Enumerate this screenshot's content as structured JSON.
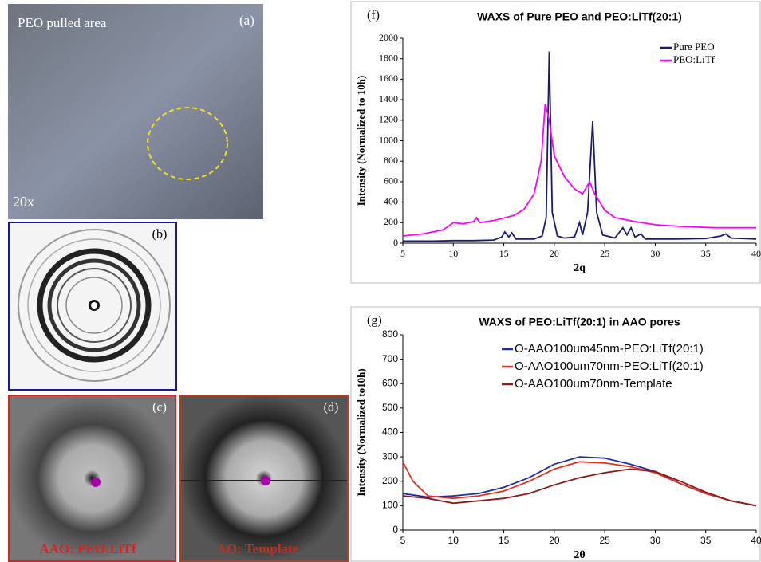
{
  "panels": {
    "a": {
      "tag": "(a)",
      "caption": "PEO pulled area",
      "magnification": "20x"
    },
    "b": {
      "tag": "(b)"
    },
    "c": {
      "tag": "(c)",
      "caption": "AAO: PEO:LiTf"
    },
    "d": {
      "tag": "(d)",
      "caption": "AO: Template"
    }
  },
  "chart_data": [
    {
      "type": "line",
      "tag": "(f)",
      "title": "WAXS of Pure PEO and PEO:LiTf(20:1)",
      "x_label": "2q",
      "y_label": "Intensity (Normalized to 10h)",
      "xlim": [
        5,
        40
      ],
      "xticks": [
        5,
        10,
        15,
        20,
        25,
        30,
        35,
        40
      ],
      "ylim": [
        0,
        2000
      ],
      "yticks": [
        0,
        200,
        400,
        600,
        800,
        1000,
        1200,
        1400,
        1600,
        1800,
        2000
      ],
      "legend": "top-right",
      "series": [
        {
          "name": "Pure PEO",
          "color": "#1a1a6e",
          "x": [
            5,
            8,
            10,
            12,
            14,
            14.8,
            15.1,
            15.5,
            15.8,
            16.2,
            18,
            18.8,
            19.2,
            19.5,
            19.8,
            20.3,
            21,
            22,
            22.5,
            22.8,
            23.3,
            23.8,
            24.2,
            24.8,
            26,
            26.8,
            27.2,
            27.6,
            28,
            28.6,
            29,
            32,
            35,
            36.5,
            37,
            37.5,
            40
          ],
          "values": [
            20,
            20,
            25,
            25,
            30,
            60,
            110,
            60,
            100,
            40,
            40,
            70,
            250,
            1870,
            300,
            70,
            50,
            60,
            200,
            80,
            300,
            1190,
            300,
            80,
            50,
            150,
            80,
            150,
            60,
            90,
            40,
            40,
            45,
            70,
            90,
            50,
            40
          ]
        },
        {
          "name": "PEO:LiTf",
          "color": "#ff00ff",
          "x": [
            5,
            7,
            9,
            10,
            11,
            12,
            12.3,
            12.6,
            14,
            16,
            17,
            18,
            18.7,
            19.1,
            19.5,
            20,
            21,
            22,
            22.8,
            23.5,
            24,
            25,
            26,
            28,
            30,
            33,
            36,
            38,
            40
          ],
          "values": [
            70,
            90,
            130,
            200,
            190,
            210,
            250,
            200,
            220,
            270,
            330,
            480,
            800,
            1360,
            1200,
            850,
            650,
            530,
            480,
            600,
            480,
            320,
            250,
            210,
            180,
            160,
            150,
            150,
            150
          ]
        }
      ]
    },
    {
      "type": "line",
      "tag": "(g)",
      "title": "WAXS of PEO:LiTf(20:1) in AAO pores",
      "x_label": "2θ",
      "y_label": "Intensity (Normalized to10h)",
      "xlim": [
        5,
        40
      ],
      "xticks": [
        5,
        10,
        15,
        20,
        25,
        30,
        35,
        40
      ],
      "ylim": [
        0,
        800
      ],
      "yticks": [
        0,
        100,
        200,
        300,
        400,
        500,
        600,
        700,
        800
      ],
      "legend": "top",
      "series": [
        {
          "name": "O-AAO100um45nm-PEO:LiTf(20:1)",
          "color": "#1f2f9f",
          "x": [
            5,
            7.5,
            10,
            12.5,
            15,
            17.5,
            20,
            22.5,
            25,
            27.5,
            30,
            32.5,
            35,
            37.5,
            40
          ],
          "values": [
            150,
            135,
            140,
            150,
            175,
            215,
            270,
            300,
            295,
            270,
            240,
            190,
            150,
            120,
            100
          ]
        },
        {
          "name": "O-AAO100um70nm-PEO:LiTf(20:1)",
          "color": "#e03020",
          "x": [
            5,
            6,
            7.5,
            10,
            12.5,
            15,
            17.5,
            20,
            22.5,
            25,
            27.5,
            30,
            32.5,
            35,
            37.5,
            40
          ],
          "values": [
            280,
            200,
            140,
            130,
            140,
            160,
            200,
            250,
            280,
            275,
            260,
            235,
            190,
            150,
            120,
            100
          ]
        },
        {
          "name": "O-AAO100um70nm-Template",
          "color": "#8b1a1a",
          "x": [
            5,
            7.5,
            10,
            12.5,
            15,
            17.5,
            20,
            22.5,
            25,
            27.5,
            30,
            32.5,
            35,
            37.5,
            40
          ],
          "values": [
            140,
            130,
            110,
            120,
            130,
            150,
            185,
            215,
            235,
            250,
            240,
            200,
            155,
            120,
            100
          ]
        }
      ]
    }
  ]
}
